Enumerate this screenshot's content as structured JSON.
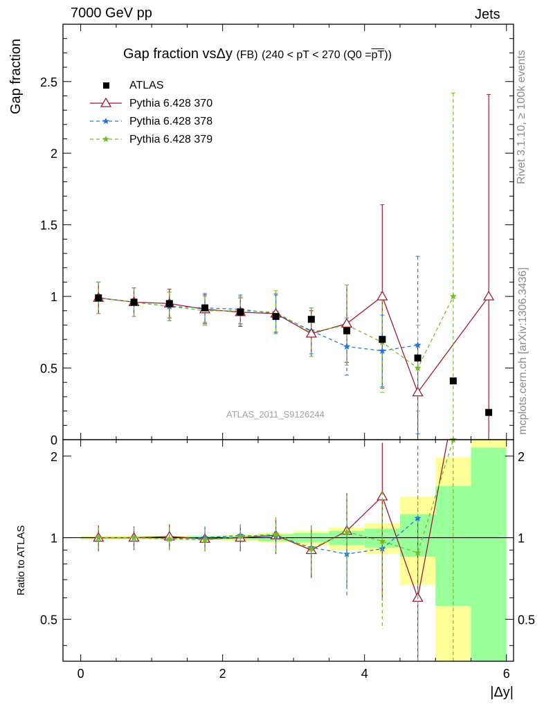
{
  "header": {
    "left": "7000 GeV pp",
    "right": "Jets"
  },
  "side": {
    "rivet": "Rivet 3.1.10, ≥ 100k events",
    "mcplots": "mcplots.cern.ch [arXiv:1306.3436]"
  },
  "chart_data": [
    {
      "type": "scatter",
      "title_main": "Gap fraction vsΔy",
      "title_tag": "(FB)",
      "title_cut": "(240 < pT < 270 (Q0 =",
      "title_overline": "pT",
      "title_close": "))",
      "ylabel": "Gap fraction",
      "watermark": "ATLAS_2011_S9126244",
      "xlim": [
        -0.25,
        6.1
      ],
      "ylim": [
        0,
        2.9
      ],
      "yticks": [
        0,
        0.5,
        1,
        1.5,
        2,
        2.5
      ],
      "ytick_labels": [
        "0",
        "0.5",
        "1",
        "1.5",
        "2",
        "2.5"
      ],
      "legend_placement": "top-left",
      "legend": [
        "ATLAS",
        "Pythia 6.428 370",
        "Pythia 6.428 378",
        "Pythia 6.428 379"
      ],
      "series": [
        {
          "name": "ATLAS",
          "color": "#000000",
          "marker": "square",
          "x": [
            0.25,
            0.75,
            1.25,
            1.75,
            2.25,
            2.75,
            3.25,
            3.75,
            4.25,
            4.75,
            5.25,
            5.75
          ],
          "y": [
            0.99,
            0.96,
            0.95,
            0.92,
            0.89,
            0.86,
            0.84,
            0.76,
            0.7,
            0.57,
            0.41,
            0.19
          ]
        },
        {
          "name": "Pythia 6.428 370",
          "color": "#a0182e",
          "marker": "triangle",
          "dash": "",
          "x": [
            0.25,
            0.75,
            1.25,
            1.75,
            2.25,
            2.75,
            3.25,
            3.75,
            4.25,
            4.75,
            5.75
          ],
          "y": [
            0.99,
            0.96,
            0.95,
            0.91,
            0.89,
            0.88,
            0.74,
            0.81,
            1.0,
            0.33,
            1.0
          ],
          "err": [
            0.11,
            0.1,
            0.1,
            0.1,
            0.1,
            0.13,
            0.16,
            0.27,
            0.64,
            0.33,
            1.41
          ]
        },
        {
          "name": "Pythia 6.428 378",
          "color": "#2277dd",
          "marker": "star",
          "dash": "5,4",
          "x": [
            0.25,
            0.75,
            1.25,
            1.75,
            2.25,
            2.75,
            3.25,
            3.75,
            4.25,
            4.75
          ],
          "y": [
            0.99,
            0.96,
            0.93,
            0.92,
            0.91,
            0.88,
            0.76,
            0.65,
            0.62,
            0.66
          ],
          "err": [
            0.11,
            0.1,
            0.1,
            0.1,
            0.1,
            0.14,
            0.16,
            0.2,
            0.25,
            0.62
          ]
        },
        {
          "name": "Pythia 6.428 379",
          "color": "#77bb22",
          "marker": "star",
          "dash": "5,4",
          "x": [
            0.25,
            0.75,
            1.25,
            1.75,
            2.25,
            2.75,
            3.25,
            3.75,
            4.25,
            4.75,
            5.25
          ],
          "y": [
            0.99,
            0.96,
            0.93,
            0.9,
            0.9,
            0.89,
            0.75,
            0.8,
            0.68,
            0.5,
            1.0
          ],
          "err": [
            0.11,
            0.1,
            0.1,
            0.1,
            0.1,
            0.15,
            0.17,
            0.28,
            0.35,
            0.3,
            1.42
          ]
        }
      ]
    },
    {
      "type": "scatter",
      "ylabel": "Ratio to ATLAS",
      "xlabel": "|Δy|",
      "xlim": [
        -0.25,
        6.1
      ],
      "ylim": [
        0.35,
        2.3
      ],
      "log_y": true,
      "xticks": [
        0,
        2,
        4,
        6
      ],
      "xtick_labels": [
        "0",
        "2",
        "4",
        "6"
      ],
      "yticks": [
        0.5,
        1,
        2
      ],
      "ytick_labels": [
        "0.5",
        "1",
        "2"
      ],
      "bands": {
        "x_edges": [
          0,
          0.5,
          1,
          1.5,
          2,
          2.5,
          3,
          3.5,
          4,
          4.5,
          5,
          5.5,
          6
        ],
        "outer_color": "#ffff99",
        "inner_color": "#99ff99",
        "outer": [
          [
            0.985,
            1.015
          ],
          [
            0.985,
            1.015
          ],
          [
            0.985,
            1.015
          ],
          [
            0.98,
            1.02
          ],
          [
            0.975,
            1.025
          ],
          [
            0.96,
            1.04
          ],
          [
            0.94,
            1.06
          ],
          [
            0.9,
            1.09
          ],
          [
            0.87,
            1.13
          ],
          [
            0.67,
            1.42
          ],
          [
            0.35,
            1.98
          ],
          [
            0.35,
            2.3
          ]
        ],
        "inner": [
          [
            0.99,
            1.01
          ],
          [
            0.99,
            1.01
          ],
          [
            0.99,
            1.01
          ],
          [
            0.985,
            1.015
          ],
          [
            0.985,
            1.015
          ],
          [
            0.97,
            1.03
          ],
          [
            0.96,
            1.04
          ],
          [
            0.94,
            1.06
          ],
          [
            0.92,
            1.08
          ],
          [
            0.85,
            1.22
          ],
          [
            0.56,
            1.55
          ],
          [
            0.35,
            2.15
          ]
        ]
      },
      "series": [
        {
          "name": "Pythia 6.428 370",
          "x": [
            0.25,
            0.75,
            1.25,
            1.75,
            2.25,
            2.75,
            3.25,
            3.75,
            4.25,
            4.75
          ],
          "y": [
            1.0,
            1.0,
            1.01,
            0.99,
            1.0,
            1.02,
            0.9,
            1.06,
            1.42,
            0.6
          ],
          "err": [
            0.11,
            0.1,
            0.11,
            0.1,
            0.11,
            0.15,
            0.19,
            0.4,
            0.82,
            0.6
          ],
          "offscale": {
            "from": 4.75,
            "to": 5.17
          }
        },
        {
          "name": "Pythia 6.428 378",
          "x": [
            0.25,
            0.75,
            1.25,
            1.75,
            2.25,
            2.75,
            3.25,
            3.75,
            4.25,
            4.75
          ],
          "y": [
            1.0,
            1.0,
            0.99,
            1.0,
            1.02,
            1.01,
            0.92,
            0.87,
            0.91,
            1.18
          ],
          "err": [
            0.09,
            0.09,
            0.09,
            0.1,
            0.1,
            0.13,
            0.19,
            0.26,
            0.36,
            1.0
          ]
        },
        {
          "name": "Pythia 6.428 379",
          "x": [
            0.25,
            0.75,
            1.25,
            1.75,
            2.25,
            2.75,
            3.25,
            3.75,
            4.25,
            4.75,
            5.25
          ],
          "y": [
            1.0,
            1.0,
            0.99,
            0.98,
            1.01,
            1.03,
            0.91,
            1.05,
            0.97,
            0.88,
            2.3
          ],
          "err": [
            0.09,
            0.09,
            0.1,
            0.1,
            0.11,
            0.16,
            0.19,
            0.38,
            0.51,
            0.8,
            2.0
          ]
        }
      ]
    }
  ]
}
